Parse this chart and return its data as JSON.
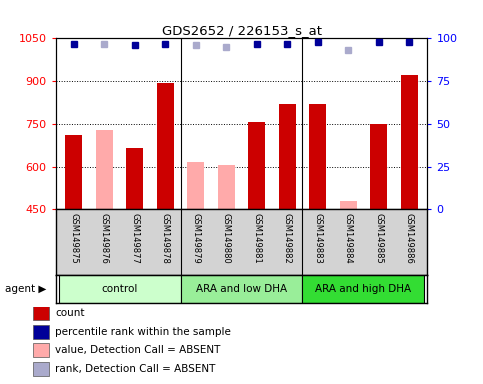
{
  "title": "GDS2652 / 226153_s_at",
  "samples": [
    "GSM149875",
    "GSM149876",
    "GSM149877",
    "GSM149878",
    "GSM149879",
    "GSM149880",
    "GSM149881",
    "GSM149882",
    "GSM149883",
    "GSM149884",
    "GSM149885",
    "GSM149886"
  ],
  "count_values": [
    710,
    null,
    665,
    895,
    null,
    null,
    755,
    820,
    820,
    null,
    750,
    920
  ],
  "absent_values": [
    null,
    730,
    null,
    null,
    615,
    605,
    null,
    null,
    null,
    480,
    null,
    null
  ],
  "rank_values": [
    97,
    null,
    96,
    97,
    null,
    null,
    97,
    97,
    98,
    null,
    98,
    98
  ],
  "absent_rank_values": [
    null,
    97,
    null,
    null,
    96,
    95,
    null,
    null,
    null,
    93,
    null,
    null
  ],
  "ylim_left": [
    450,
    1050
  ],
  "ylim_right": [
    0,
    100
  ],
  "yticks_left": [
    450,
    600,
    750,
    900,
    1050
  ],
  "yticks_right": [
    0,
    25,
    50,
    75,
    100
  ],
  "groups": [
    {
      "label": "control",
      "start": 0,
      "end": 4,
      "color": "#ccffcc"
    },
    {
      "label": "ARA and low DHA",
      "start": 4,
      "end": 8,
      "color": "#99ee99"
    },
    {
      "label": "ARA and high DHA",
      "start": 8,
      "end": 12,
      "color": "#33dd33"
    }
  ],
  "bar_width": 0.55,
  "count_color": "#cc0000",
  "absent_color": "#ffaaaa",
  "rank_color": "#000099",
  "absent_rank_color": "#aaaacc",
  "bg_color": "#d3d3d3",
  "legend_items": [
    {
      "label": "count",
      "color": "#cc0000"
    },
    {
      "label": "percentile rank within the sample",
      "color": "#000099"
    },
    {
      "label": "value, Detection Call = ABSENT",
      "color": "#ffaaaa"
    },
    {
      "label": "rank, Detection Call = ABSENT",
      "color": "#aaaacc"
    }
  ]
}
